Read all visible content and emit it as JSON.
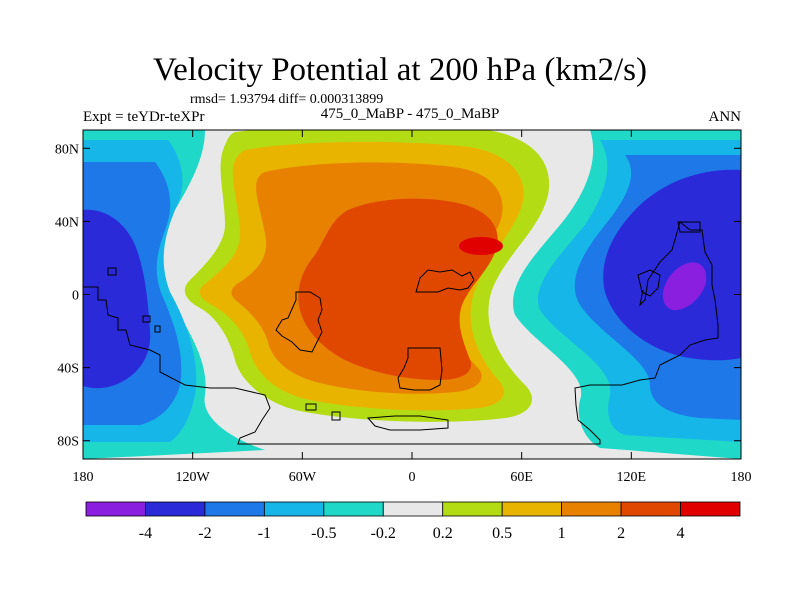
{
  "header": {
    "title": "Velocity Potential at 200 hPa (km2/s)",
    "stats": "rmsd= 1.93794  diff= 0.000313899",
    "left_label": "Expt = teYDr-teXPr",
    "center_label": "475_0_MaBP - 475_0_MaBP",
    "right_label": "ANN"
  },
  "chart_data": {
    "type": "heatmap",
    "title": "Velocity Potential at 200 hPa (km2/s)",
    "xlabel": "",
    "ylabel": "",
    "xlim": [
      -180,
      180
    ],
    "ylim": [
      -90,
      90
    ],
    "x_ticks": [
      {
        "value": -180,
        "label": "180"
      },
      {
        "value": -120,
        "label": "120W"
      },
      {
        "value": -60,
        "label": "60W"
      },
      {
        "value": 0,
        "label": "0"
      },
      {
        "value": 60,
        "label": "60E"
      },
      {
        "value": 120,
        "label": "120E"
      },
      {
        "value": 180,
        "label": "180"
      }
    ],
    "y_ticks": [
      {
        "value": 80,
        "label": "80N"
      },
      {
        "value": 40,
        "label": "40N"
      },
      {
        "value": 0,
        "label": "0"
      },
      {
        "value": -40,
        "label": "40S"
      },
      {
        "value": -80,
        "label": "80S"
      }
    ],
    "colorbar": {
      "levels": [
        "-4",
        "-2",
        "-1",
        "-0.5",
        "-0.2",
        "0.2",
        "0.5",
        "1",
        "2",
        "4"
      ],
      "colors": [
        "#8a1fe0",
        "#2a2ad8",
        "#1e78e8",
        "#16b6e8",
        "#20d8c8",
        "#e8e8e8",
        "#b4dc14",
        "#e8b400",
        "#e88000",
        "#e04800",
        "#e00000"
      ]
    },
    "features": [
      {
        "name": "positive maximum",
        "lon": 38,
        "lat": 27,
        "level": "> 4"
      },
      {
        "name": "negative minimum",
        "lon": 150,
        "lat": 5,
        "level": "< -4"
      }
    ]
  }
}
